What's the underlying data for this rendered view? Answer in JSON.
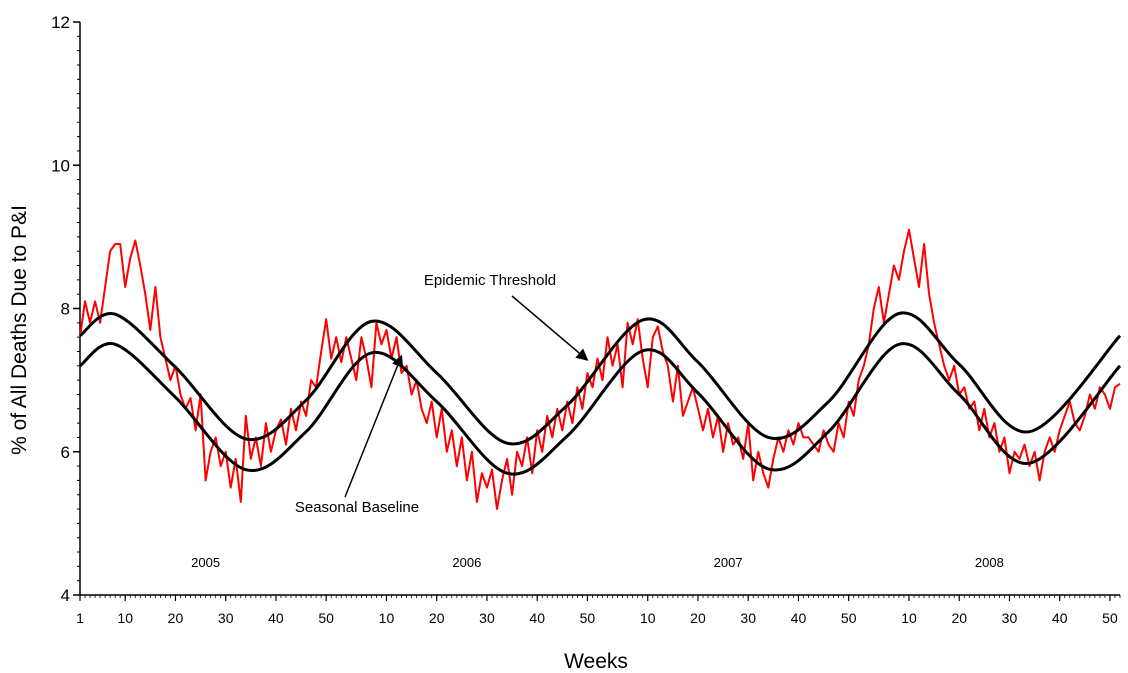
{
  "chart_data": {
    "type": "line",
    "title": "",
    "xlabel": "Weeks",
    "ylabel": "% of All Deaths Due to P&I",
    "ylim": [
      4,
      12
    ],
    "yticks": [
      "4",
      "6",
      "8",
      "10",
      "12"
    ],
    "week_ticks": [
      "1",
      "10",
      "20",
      "30",
      "40",
      "50",
      "10",
      "20",
      "30",
      "40",
      "50",
      "10",
      "20",
      "30",
      "40",
      "50",
      "10",
      "20",
      "30",
      "40",
      "50"
    ],
    "year_labels": [
      "2005",
      "2006",
      "2007",
      "2008"
    ],
    "weeks_per_year": 52,
    "grid": false,
    "colors": {
      "observed": "#ff0000",
      "threshold": "#000000",
      "baseline": "#000000"
    },
    "series": [
      {
        "key": "threshold",
        "values": [
          {
            "x": "2005-W01",
            "y": 7.62
          },
          {
            "x": "2005-W08",
            "y": 7.92
          },
          {
            "x": "2005-W20",
            "y": 7.18
          },
          {
            "x": "2005-W34",
            "y": 6.18
          },
          {
            "x": "2005-W46",
            "y": 6.72
          },
          {
            "x": "2006-W07",
            "y": 7.82
          },
          {
            "x": "2006-W20",
            "y": 7.1
          },
          {
            "x": "2006-W34",
            "y": 6.12
          },
          {
            "x": "2006-W46",
            "y": 6.65
          },
          {
            "x": "2007-W09",
            "y": 7.84
          },
          {
            "x": "2007-W20",
            "y": 7.25
          },
          {
            "x": "2007-W34",
            "y": 6.2
          },
          {
            "x": "2007-W46",
            "y": 6.7
          },
          {
            "x": "2008-W08",
            "y": 7.93
          },
          {
            "x": "2008-W20",
            "y": 7.22
          },
          {
            "x": "2008-W34",
            "y": 6.28
          },
          {
            "x": "2008-W52",
            "y": 7.62
          }
        ]
      },
      {
        "key": "baseline",
        "values": [
          {
            "x": "2005-W01",
            "y": 7.2
          },
          {
            "x": "2005-W08",
            "y": 7.5
          },
          {
            "x": "2005-W20",
            "y": 6.76
          },
          {
            "x": "2005-W34",
            "y": 5.75
          },
          {
            "x": "2005-W46",
            "y": 6.28
          },
          {
            "x": "2006-W07",
            "y": 7.38
          },
          {
            "x": "2006-W20",
            "y": 6.7
          },
          {
            "x": "2006-W34",
            "y": 5.7
          },
          {
            "x": "2006-W46",
            "y": 6.22
          },
          {
            "x": "2007-W09",
            "y": 7.41
          },
          {
            "x": "2007-W20",
            "y": 6.82
          },
          {
            "x": "2007-W34",
            "y": 5.76
          },
          {
            "x": "2007-W46",
            "y": 6.28
          },
          {
            "x": "2008-W08",
            "y": 7.5
          },
          {
            "x": "2008-W20",
            "y": 6.8
          },
          {
            "x": "2008-W34",
            "y": 5.84
          },
          {
            "x": "2008-W52",
            "y": 7.2
          }
        ]
      },
      {
        "key": "observed",
        "values": [
          {
            "x": "2005-W01",
            "y": 7.6
          },
          {
            "x": "2005-W02",
            "y": 8.1
          },
          {
            "x": "2005-W03",
            "y": 7.8
          },
          {
            "x": "2005-W04",
            "y": 8.1
          },
          {
            "x": "2005-W05",
            "y": 7.8
          },
          {
            "x": "2005-W06",
            "y": 8.3
          },
          {
            "x": "2005-W07",
            "y": 8.8
          },
          {
            "x": "2005-W08",
            "y": 8.9
          },
          {
            "x": "2005-W09",
            "y": 8.9
          },
          {
            "x": "2005-W10",
            "y": 8.3
          },
          {
            "x": "2005-W11",
            "y": 8.7
          },
          {
            "x": "2005-W12",
            "y": 8.95
          },
          {
            "x": "2005-W13",
            "y": 8.6
          },
          {
            "x": "2005-W14",
            "y": 8.2
          },
          {
            "x": "2005-W15",
            "y": 7.7
          },
          {
            "x": "2005-W16",
            "y": 8.3
          },
          {
            "x": "2005-W17",
            "y": 7.6
          },
          {
            "x": "2005-W18",
            "y": 7.3
          },
          {
            "x": "2005-W19",
            "y": 7.0
          },
          {
            "x": "2005-W20",
            "y": 7.2
          },
          {
            "x": "2005-W21",
            "y": 6.8
          },
          {
            "x": "2005-W22",
            "y": 6.6
          },
          {
            "x": "2005-W23",
            "y": 6.75
          },
          {
            "x": "2005-W24",
            "y": 6.3
          },
          {
            "x": "2005-W25",
            "y": 6.8
          },
          {
            "x": "2005-W26",
            "y": 5.6
          },
          {
            "x": "2005-W27",
            "y": 6.0
          },
          {
            "x": "2005-W28",
            "y": 6.2
          },
          {
            "x": "2005-W29",
            "y": 5.8
          },
          {
            "x": "2005-W30",
            "y": 6.0
          },
          {
            "x": "2005-W31",
            "y": 5.5
          },
          {
            "x": "2005-W32",
            "y": 5.9
          },
          {
            "x": "2005-W33",
            "y": 5.3
          },
          {
            "x": "2005-W34",
            "y": 6.5
          },
          {
            "x": "2005-W35",
            "y": 5.9
          },
          {
            "x": "2005-W36",
            "y": 6.2
          },
          {
            "x": "2005-W37",
            "y": 5.8
          },
          {
            "x": "2005-W38",
            "y": 6.4
          },
          {
            "x": "2005-W39",
            "y": 6.0
          },
          {
            "x": "2005-W40",
            "y": 6.3
          },
          {
            "x": "2005-W41",
            "y": 6.45
          },
          {
            "x": "2005-W42",
            "y": 6.1
          },
          {
            "x": "2005-W43",
            "y": 6.6
          },
          {
            "x": "2005-W44",
            "y": 6.3
          },
          {
            "x": "2005-W45",
            "y": 6.7
          },
          {
            "x": "2005-W46",
            "y": 6.5
          },
          {
            "x": "2005-W47",
            "y": 7.0
          },
          {
            "x": "2005-W48",
            "y": 6.9
          },
          {
            "x": "2005-W49",
            "y": 7.4
          },
          {
            "x": "2005-W50",
            "y": 7.85
          },
          {
            "x": "2005-W51",
            "y": 7.3
          },
          {
            "x": "2005-W52",
            "y": 7.6
          },
          {
            "x": "2006-W01",
            "y": 7.25
          },
          {
            "x": "2006-W02",
            "y": 7.6
          },
          {
            "x": "2006-W03",
            "y": 7.3
          },
          {
            "x": "2006-W04",
            "y": 7.0
          },
          {
            "x": "2006-W05",
            "y": 7.6
          },
          {
            "x": "2006-W06",
            "y": 7.3
          },
          {
            "x": "2006-W07",
            "y": 6.9
          },
          {
            "x": "2006-W08",
            "y": 7.8
          },
          {
            "x": "2006-W09",
            "y": 7.5
          },
          {
            "x": "2006-W10",
            "y": 7.7
          },
          {
            "x": "2006-W11",
            "y": 7.3
          },
          {
            "x": "2006-W12",
            "y": 7.6
          },
          {
            "x": "2006-W13",
            "y": 7.1
          },
          {
            "x": "2006-W14",
            "y": 7.2
          },
          {
            "x": "2006-W15",
            "y": 6.8
          },
          {
            "x": "2006-W16",
            "y": 7.0
          },
          {
            "x": "2006-W17",
            "y": 6.6
          },
          {
            "x": "2006-W18",
            "y": 6.4
          },
          {
            "x": "2006-W19",
            "y": 6.7
          },
          {
            "x": "2006-W20",
            "y": 6.2
          },
          {
            "x": "2006-W21",
            "y": 6.6
          },
          {
            "x": "2006-W22",
            "y": 6.0
          },
          {
            "x": "2006-W23",
            "y": 6.3
          },
          {
            "x": "2006-W24",
            "y": 5.8
          },
          {
            "x": "2006-W25",
            "y": 6.2
          },
          {
            "x": "2006-W26",
            "y": 5.6
          },
          {
            "x": "2006-W27",
            "y": 6.0
          },
          {
            "x": "2006-W28",
            "y": 5.3
          },
          {
            "x": "2006-W29",
            "y": 5.7
          },
          {
            "x": "2006-W30",
            "y": 5.5
          },
          {
            "x": "2006-W31",
            "y": 5.75
          },
          {
            "x": "2006-W32",
            "y": 5.2
          },
          {
            "x": "2006-W33",
            "y": 5.6
          },
          {
            "x": "2006-W34",
            "y": 5.9
          },
          {
            "x": "2006-W35",
            "y": 5.4
          },
          {
            "x": "2006-W36",
            "y": 6.0
          },
          {
            "x": "2006-W37",
            "y": 5.8
          },
          {
            "x": "2006-W38",
            "y": 6.2
          },
          {
            "x": "2006-W39",
            "y": 5.7
          },
          {
            "x": "2006-W40",
            "y": 6.3
          },
          {
            "x": "2006-W41",
            "y": 6.0
          },
          {
            "x": "2006-W42",
            "y": 6.5
          },
          {
            "x": "2006-W43",
            "y": 6.2
          },
          {
            "x": "2006-W44",
            "y": 6.6
          },
          {
            "x": "2006-W45",
            "y": 6.3
          },
          {
            "x": "2006-W46",
            "y": 6.7
          },
          {
            "x": "2006-W47",
            "y": 6.4
          },
          {
            "x": "2006-W48",
            "y": 6.9
          },
          {
            "x": "2006-W49",
            "y": 6.6
          },
          {
            "x": "2006-W50",
            "y": 7.1
          },
          {
            "x": "2006-W51",
            "y": 6.9
          },
          {
            "x": "2006-W52",
            "y": 7.3
          },
          {
            "x": "2007-W01",
            "y": 7.0
          },
          {
            "x": "2007-W02",
            "y": 7.6
          },
          {
            "x": "2007-W03",
            "y": 7.2
          },
          {
            "x": "2007-W04",
            "y": 7.5
          },
          {
            "x": "2007-W05",
            "y": 6.9
          },
          {
            "x": "2007-W06",
            "y": 7.8
          },
          {
            "x": "2007-W07",
            "y": 7.5
          },
          {
            "x": "2007-W08",
            "y": 7.85
          },
          {
            "x": "2007-W09",
            "y": 7.3
          },
          {
            "x": "2007-W10",
            "y": 6.9
          },
          {
            "x": "2007-W11",
            "y": 7.6
          },
          {
            "x": "2007-W12",
            "y": 7.75
          },
          {
            "x": "2007-W13",
            "y": 7.4
          },
          {
            "x": "2007-W14",
            "y": 7.2
          },
          {
            "x": "2007-W15",
            "y": 6.7
          },
          {
            "x": "2007-W16",
            "y": 7.2
          },
          {
            "x": "2007-W17",
            "y": 6.5
          },
          {
            "x": "2007-W18",
            "y": 6.7
          },
          {
            "x": "2007-W19",
            "y": 6.9
          },
          {
            "x": "2007-W20",
            "y": 6.6
          },
          {
            "x": "2007-W21",
            "y": 6.3
          },
          {
            "x": "2007-W22",
            "y": 6.6
          },
          {
            "x": "2007-W23",
            "y": 6.2
          },
          {
            "x": "2007-W24",
            "y": 6.5
          },
          {
            "x": "2007-W25",
            "y": 6.0
          },
          {
            "x": "2007-W26",
            "y": 6.4
          },
          {
            "x": "2007-W27",
            "y": 6.1
          },
          {
            "x": "2007-W28",
            "y": 6.2
          },
          {
            "x": "2007-W29",
            "y": 5.9
          },
          {
            "x": "2007-W30",
            "y": 6.4
          },
          {
            "x": "2007-W31",
            "y": 5.6
          },
          {
            "x": "2007-W32",
            "y": 6.0
          },
          {
            "x": "2007-W33",
            "y": 5.7
          },
          {
            "x": "2007-W34",
            "y": 5.5
          },
          {
            "x": "2007-W35",
            "y": 5.9
          },
          {
            "x": "2007-W36",
            "y": 6.2
          },
          {
            "x": "2007-W37",
            "y": 6.0
          },
          {
            "x": "2007-W38",
            "y": 6.3
          },
          {
            "x": "2007-W39",
            "y": 6.1
          },
          {
            "x": "2007-W40",
            "y": 6.4
          },
          {
            "x": "2007-W41",
            "y": 6.2
          },
          {
            "x": "2007-W42",
            "y": 6.2
          },
          {
            "x": "2007-W43",
            "y": 6.1
          },
          {
            "x": "2007-W44",
            "y": 6.0
          },
          {
            "x": "2007-W45",
            "y": 6.3
          },
          {
            "x": "2007-W46",
            "y": 6.1
          },
          {
            "x": "2007-W47",
            "y": 6.0
          },
          {
            "x": "2007-W48",
            "y": 6.4
          },
          {
            "x": "2007-W49",
            "y": 6.2
          },
          {
            "x": "2007-W50",
            "y": 6.7
          },
          {
            "x": "2007-W51",
            "y": 6.5
          },
          {
            "x": "2007-W52",
            "y": 7.0
          },
          {
            "x": "2008-W01",
            "y": 7.2
          },
          {
            "x": "2008-W02",
            "y": 7.5
          },
          {
            "x": "2008-W03",
            "y": 8.0
          },
          {
            "x": "2008-W04",
            "y": 8.3
          },
          {
            "x": "2008-W05",
            "y": 7.8
          },
          {
            "x": "2008-W06",
            "y": 8.2
          },
          {
            "x": "2008-W07",
            "y": 8.6
          },
          {
            "x": "2008-W08",
            "y": 8.4
          },
          {
            "x": "2008-W09",
            "y": 8.8
          },
          {
            "x": "2008-W10",
            "y": 9.1
          },
          {
            "x": "2008-W11",
            "y": 8.7
          },
          {
            "x": "2008-W12",
            "y": 8.3
          },
          {
            "x": "2008-W13",
            "y": 8.9
          },
          {
            "x": "2008-W14",
            "y": 8.2
          },
          {
            "x": "2008-W15",
            "y": 7.8
          },
          {
            "x": "2008-W16",
            "y": 7.5
          },
          {
            "x": "2008-W17",
            "y": 7.2
          },
          {
            "x": "2008-W18",
            "y": 7.0
          },
          {
            "x": "2008-W19",
            "y": 7.2
          },
          {
            "x": "2008-W20",
            "y": 6.8
          },
          {
            "x": "2008-W21",
            "y": 6.9
          },
          {
            "x": "2008-W22",
            "y": 6.6
          },
          {
            "x": "2008-W23",
            "y": 6.7
          },
          {
            "x": "2008-W24",
            "y": 6.3
          },
          {
            "x": "2008-W25",
            "y": 6.6
          },
          {
            "x": "2008-W26",
            "y": 6.2
          },
          {
            "x": "2008-W27",
            "y": 6.4
          },
          {
            "x": "2008-W28",
            "y": 6.0
          },
          {
            "x": "2008-W29",
            "y": 6.2
          },
          {
            "x": "2008-W30",
            "y": 5.7
          },
          {
            "x": "2008-W31",
            "y": 6.0
          },
          {
            "x": "2008-W32",
            "y": 5.9
          },
          {
            "x": "2008-W33",
            "y": 6.1
          },
          {
            "x": "2008-W34",
            "y": 5.8
          },
          {
            "x": "2008-W35",
            "y": 6.0
          },
          {
            "x": "2008-W36",
            "y": 5.6
          },
          {
            "x": "2008-W37",
            "y": 6.0
          },
          {
            "x": "2008-W38",
            "y": 6.2
          },
          {
            "x": "2008-W39",
            "y": 6.0
          },
          {
            "x": "2008-W40",
            "y": 6.3
          },
          {
            "x": "2008-W41",
            "y": 6.5
          },
          {
            "x": "2008-W42",
            "y": 6.7
          },
          {
            "x": "2008-W43",
            "y": 6.4
          },
          {
            "x": "2008-W44",
            "y": 6.3
          },
          {
            "x": "2008-W45",
            "y": 6.5
          },
          {
            "x": "2008-W46",
            "y": 6.8
          },
          {
            "x": "2008-W47",
            "y": 6.6
          },
          {
            "x": "2008-W48",
            "y": 6.9
          },
          {
            "x": "2008-W49",
            "y": 6.8
          },
          {
            "x": "2008-W50",
            "y": 6.6
          },
          {
            "x": "2008-W51",
            "y": 6.9
          },
          {
            "x": "2008-W52",
            "y": 6.95
          }
        ]
      }
    ],
    "annotations": [
      {
        "text": "Epidemic Threshold",
        "target_series": "threshold",
        "x": "2006-W50",
        "y": 7.28
      },
      {
        "text": "Seasonal Baseline",
        "target_series": "baseline",
        "x": "2006-W13",
        "y": 7.34
      }
    ]
  }
}
